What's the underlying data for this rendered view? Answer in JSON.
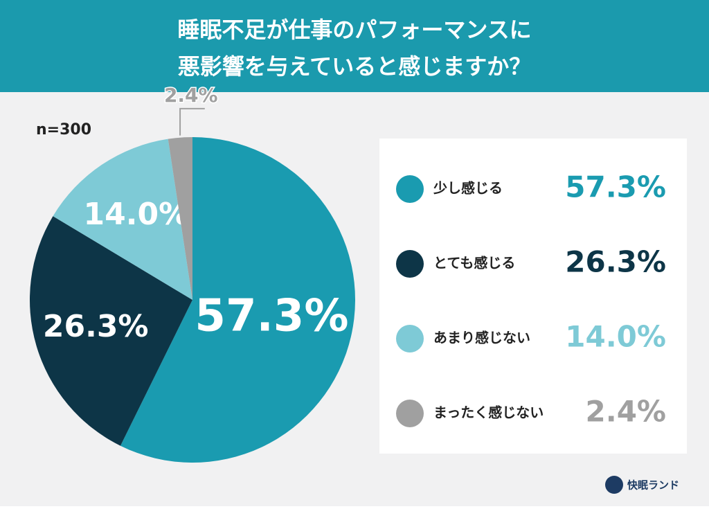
{
  "chart_data": {
    "type": "pie",
    "title": [
      "睡眠不足が仕事のパフォーマンスに",
      "悪影響を与えていると感じますか？"
    ],
    "sample_size": "n=300",
    "categories": [
      "少し感じる",
      "とても感じる",
      "あまり感じない",
      "まったく感じない"
    ],
    "values": [
      57.3,
      26.3,
      14.0,
      2.4
    ],
    "value_labels": [
      "57.3%",
      "26.3%",
      "14.0%",
      "2.4%"
    ],
    "colors": [
      "#1a9bb0",
      "#0d3547",
      "#7ecad6",
      "#a0a0a0"
    ],
    "source": "快眠ランド"
  }
}
